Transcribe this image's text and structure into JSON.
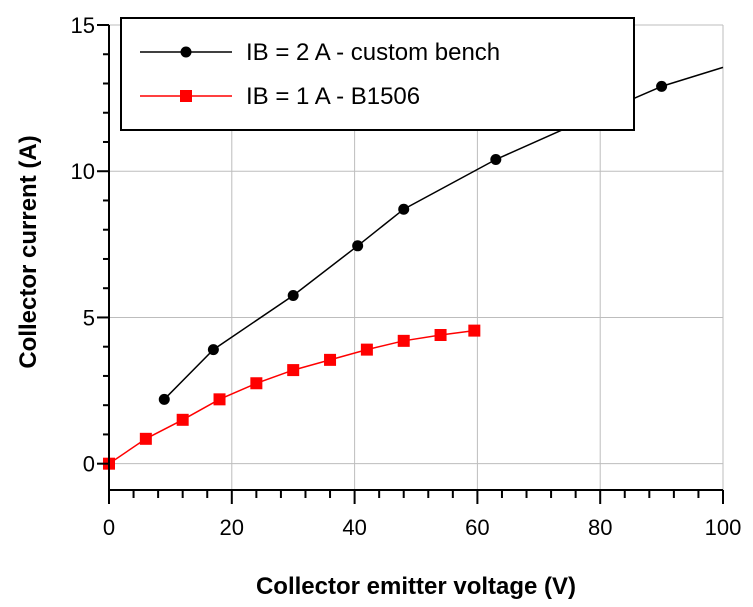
{
  "chart_data": {
    "type": "line",
    "title": "",
    "xlabel": "Collector emitter voltage (V)",
    "ylabel": "Collector current (A)",
    "xlim": [
      0,
      100
    ],
    "ylim": [
      -0.9,
      15
    ],
    "xticks": [
      0,
      20,
      40,
      60,
      80,
      100
    ],
    "xtick_labels": [
      "0",
      "20",
      "40",
      "60",
      "80",
      "100"
    ],
    "yticks": [
      0,
      5,
      10,
      15
    ],
    "ytick_labels": [
      "0",
      "5",
      "10",
      "15"
    ],
    "grid": true,
    "legend_position": "top-left",
    "series": [
      {
        "name": "IB = 2 A - custom bench",
        "color": "#000000",
        "marker": "circle",
        "x": [
          9,
          17,
          30,
          40.5,
          48,
          63,
          78.5,
          90
        ],
        "y": [
          2.2,
          3.9,
          5.75,
          7.45,
          8.7,
          10.4,
          11.85,
          12.9
        ],
        "line_extension": {
          "x": [
            90,
            100
          ],
          "y": [
            12.9,
            13.55
          ]
        }
      },
      {
        "name": "IB = 1 A - B1506",
        "color": "#ff0000",
        "marker": "square",
        "x": [
          0,
          6,
          12,
          18,
          24,
          30,
          36,
          42,
          48,
          54,
          59.5
        ],
        "y": [
          0,
          0.85,
          1.5,
          2.2,
          2.75,
          3.2,
          3.55,
          3.9,
          4.2,
          4.4,
          4.55
        ]
      }
    ]
  }
}
